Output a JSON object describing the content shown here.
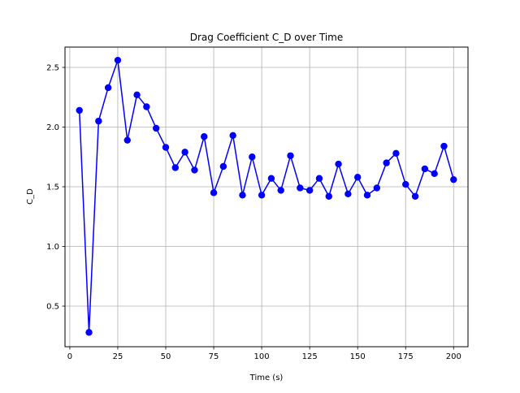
{
  "chart_data": {
    "type": "line",
    "title": "Drag Coefficient C_D over Time",
    "xlabel": "Time (s)",
    "ylabel": "C_D",
    "xlim": [
      -2.5,
      207.5
    ],
    "ylim": [
      0.16,
      2.67
    ],
    "xticks": [
      0,
      25,
      50,
      75,
      100,
      125,
      150,
      175,
      200
    ],
    "yticks": [
      0.5,
      1.0,
      1.5,
      2.0,
      2.5
    ],
    "xtick_labels": [
      "0",
      "25",
      "50",
      "75",
      "100",
      "125",
      "150",
      "175",
      "200"
    ],
    "ytick_labels": [
      "0.5",
      "1.0",
      "1.5",
      "2.0",
      "2.5"
    ],
    "grid": true,
    "marker": "circle",
    "color": "#0000ff",
    "series": [
      {
        "x": [
          5,
          10,
          15,
          20,
          25,
          30,
          35,
          40,
          45,
          50,
          55,
          60,
          65,
          70,
          75,
          80,
          85,
          90,
          95,
          100,
          105,
          110,
          115,
          120,
          125,
          130,
          135,
          140,
          145,
          150,
          155,
          160,
          165,
          170,
          175,
          180,
          185,
          190,
          195,
          200
        ],
        "y": [
          2.14,
          0.28,
          2.05,
          2.33,
          2.56,
          1.89,
          2.27,
          2.17,
          1.99,
          1.83,
          1.66,
          1.79,
          1.64,
          1.92,
          1.45,
          1.67,
          1.93,
          1.43,
          1.75,
          1.43,
          1.57,
          1.47,
          1.76,
          1.49,
          1.47,
          1.57,
          1.42,
          1.69,
          1.44,
          1.58,
          1.43,
          1.49,
          1.7,
          1.78,
          1.52,
          1.42,
          1.65,
          1.61,
          1.84,
          1.56
        ]
      }
    ]
  }
}
